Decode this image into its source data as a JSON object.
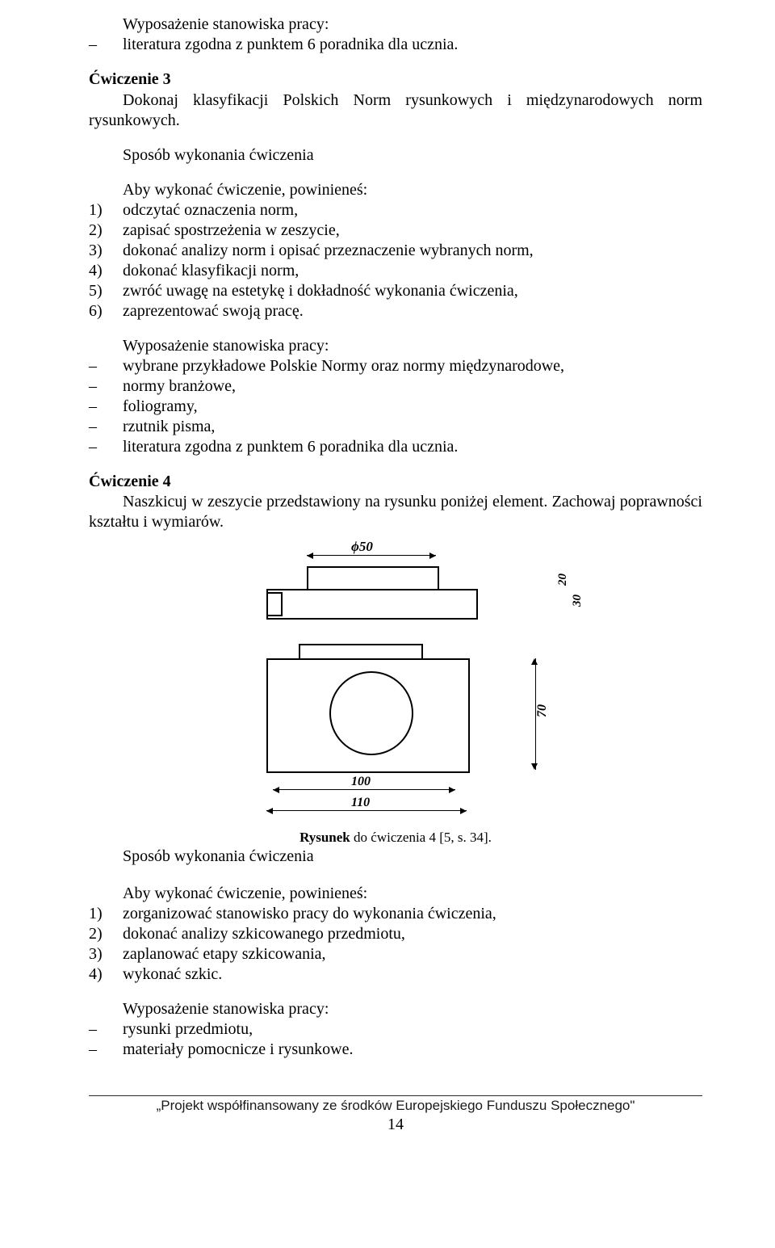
{
  "section1": {
    "heading": "Wyposażenie stanowiska pracy:",
    "items": [
      "literatura zgodna z punktem 6 poradnika dla ucznia."
    ]
  },
  "ex3": {
    "title": "Ćwiczenie 3",
    "body_line1": "Dokonaj klasyfikacji Polskich Norm rysunkowych i międzynarodowych norm",
    "body_line2": "rysunkowych.",
    "sposob": "Sposób wykonania ćwiczenia",
    "aby": "Aby wykonać ćwiczenie, powinieneś:",
    "steps": [
      "odczytać oznaczenia norm,",
      "zapisać spostrzeżenia w zeszycie,",
      "dokonać analizy norm i opisać przeznaczenie wybranych norm,",
      "dokonać klasyfikacji norm,",
      "zwróć uwagę na estetykę i dokładność wykonania ćwiczenia,",
      "zaprezentować swoją pracę."
    ]
  },
  "equip2": {
    "heading": "Wyposażenie stanowiska pracy:",
    "items": [
      "wybrane przykładowe Polskie Normy oraz normy międzynarodowe,",
      "normy branżowe,",
      "foliogramy,",
      "rzutnik pisma,",
      "literatura zgodna z punktem 6 poradnika dla ucznia."
    ]
  },
  "ex4": {
    "title": "Ćwiczenie 4",
    "body": "Naszkicuj w zeszycie przedstawiony na rysunku poniżej element. Zachowaj poprawności kształtu i wymiarów.",
    "caption_bold": "Rysunek",
    "caption_rest": " do ćwiczenia 4 [5, s. 34].",
    "sposob": "Sposób wykonania ćwiczenia",
    "aby": "Aby wykonać ćwiczenie, powinieneś:",
    "steps": [
      "zorganizować stanowisko pracy do wykonania ćwiczenia,",
      "dokonać analizy szkicowanego przedmiotu,",
      "zaplanować etapy szkicowania,",
      "wykonać szkic."
    ]
  },
  "equip3": {
    "heading": "Wyposażenie stanowiska pracy:",
    "items": [
      "rysunki przedmiotu,",
      "materiały pomocnicze i rysunkowe."
    ]
  },
  "figure_dims": {
    "phi": "ϕ50",
    "v20": "20",
    "v30": "30",
    "v70": "70",
    "h100": "100",
    "h110": "110"
  },
  "footer": {
    "text": "„Projekt współfinansowany ze środków Europejskiego Funduszu Społecznego\"",
    "page": "14"
  }
}
